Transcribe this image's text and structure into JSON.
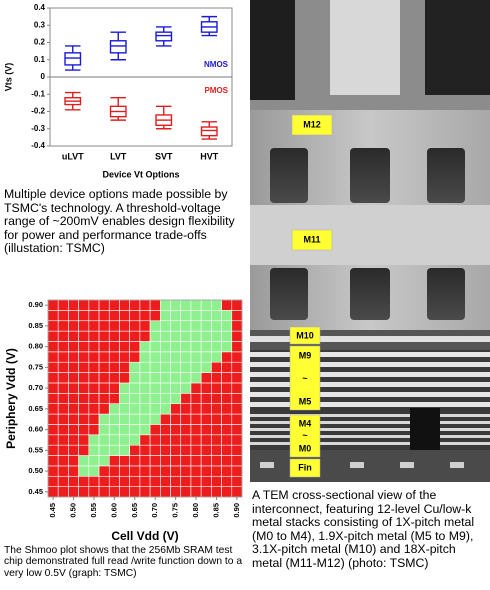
{
  "chart_data": [
    {
      "type": "box",
      "y_label": "Vts (V)",
      "x_label": "Device Vt Options",
      "categories": [
        "uLVT",
        "LVT",
        "SVT",
        "HVT"
      ],
      "ylim": [
        -0.4,
        0.4
      ],
      "yticks": [
        -0.4,
        -0.3,
        -0.2,
        -0.1,
        0,
        0.1,
        0.2,
        0.3,
        0.4
      ],
      "series": [
        {
          "name": "NMOS",
          "color": "#1a1ad8",
          "values": [
            {
              "min": 0.04,
              "q1": 0.07,
              "median": 0.11,
              "q3": 0.14,
              "max": 0.18
            },
            {
              "min": 0.1,
              "q1": 0.14,
              "median": 0.18,
              "q3": 0.21,
              "max": 0.26
            },
            {
              "min": 0.18,
              "q1": 0.21,
              "median": 0.24,
              "q3": 0.26,
              "max": 0.29
            },
            {
              "min": 0.24,
              "q1": 0.26,
              "median": 0.29,
              "q3": 0.32,
              "max": 0.35
            }
          ]
        },
        {
          "name": "PMOS",
          "color": "#e01e1e",
          "values": [
            {
              "min": -0.19,
              "q1": -0.16,
              "median": -0.14,
              "q3": -0.12,
              "max": -0.09
            },
            {
              "min": -0.25,
              "q1": -0.23,
              "median": -0.2,
              "q3": -0.17,
              "max": -0.12
            },
            {
              "min": -0.3,
              "q1": -0.28,
              "median": -0.25,
              "q3": -0.22,
              "max": -0.17
            },
            {
              "min": -0.36,
              "q1": -0.34,
              "median": -0.31,
              "q3": -0.29,
              "max": -0.26
            }
          ]
        }
      ]
    },
    {
      "type": "heatmap",
      "x_label": "Cell Vdd (V)",
      "y_label": "Periphery Vdd (V)",
      "x": [
        0.45,
        0.475,
        0.5,
        0.525,
        0.55,
        0.575,
        0.6,
        0.625,
        0.65,
        0.675,
        0.7,
        0.725,
        0.75,
        0.775,
        0.8,
        0.825,
        0.85,
        0.875,
        0.9
      ],
      "y": [
        0.45,
        0.475,
        0.5,
        0.525,
        0.55,
        0.575,
        0.6,
        0.625,
        0.65,
        0.675,
        0.7,
        0.725,
        0.75,
        0.775,
        0.8,
        0.825,
        0.85,
        0.875,
        0.9
      ],
      "xlim": [
        0.4375,
        0.9125
      ],
      "ylim": [
        0.4375,
        0.9125
      ],
      "xticks": [
        0.45,
        {
          "value": 0.5,
          "label": "0.50"
        },
        0.55,
        {
          "value": 0.6,
          "label": "0.60"
        },
        0.65,
        {
          "value": 0.7,
          "label": "0.70"
        },
        0.75,
        {
          "value": 0.8,
          "label": "0.80"
        },
        0.85,
        {
          "value": 0.9,
          "label": "0.90"
        }
      ],
      "yticks": [
        0.45,
        {
          "value": 0.5,
          "label": "0.50"
        },
        0.55,
        {
          "value": 0.6,
          "label": "0.60"
        },
        0.65,
        {
          "value": 0.7,
          "label": "0.70"
        },
        0.75,
        {
          "value": 0.8,
          "label": "0.80"
        },
        0.85,
        {
          "value": 0.9,
          "label": "0.90"
        }
      ],
      "colors": [
        "#ee1d1d",
        "#8ef08e"
      ],
      "values": [
        [
          0,
          0,
          0,
          0,
          0,
          0,
          0,
          0,
          0,
          0,
          0,
          0,
          0,
          0,
          0,
          0,
          0,
          0,
          0
        ],
        [
          0,
          0,
          0,
          0,
          0,
          0,
          0,
          0,
          0,
          0,
          0,
          0,
          0,
          0,
          0,
          0,
          0,
          0,
          0
        ],
        [
          0,
          0,
          0,
          1,
          1,
          0,
          0,
          0,
          0,
          0,
          0,
          0,
          0,
          0,
          0,
          0,
          0,
          0,
          0
        ],
        [
          0,
          0,
          0,
          1,
          1,
          1,
          0,
          0,
          0,
          0,
          0,
          0,
          0,
          0,
          0,
          0,
          0,
          0,
          0
        ],
        [
          0,
          0,
          0,
          0,
          1,
          1,
          1,
          1,
          0,
          0,
          0,
          0,
          0,
          0,
          0,
          0,
          0,
          0,
          0
        ],
        [
          0,
          0,
          0,
          0,
          1,
          1,
          1,
          1,
          1,
          0,
          0,
          0,
          0,
          0,
          0,
          0,
          0,
          0,
          0
        ],
        [
          0,
          0,
          0,
          0,
          0,
          1,
          1,
          1,
          1,
          1,
          0,
          0,
          0,
          0,
          0,
          0,
          0,
          0,
          0
        ],
        [
          0,
          0,
          0,
          0,
          0,
          1,
          1,
          1,
          1,
          1,
          1,
          0,
          0,
          0,
          0,
          0,
          0,
          0,
          0
        ],
        [
          0,
          0,
          0,
          0,
          0,
          0,
          1,
          1,
          1,
          1,
          1,
          1,
          0,
          0,
          0,
          0,
          0,
          0,
          0
        ],
        [
          0,
          0,
          0,
          0,
          0,
          0,
          0,
          1,
          1,
          1,
          1,
          1,
          1,
          0,
          0,
          0,
          0,
          0,
          0
        ],
        [
          0,
          0,
          0,
          0,
          0,
          0,
          0,
          1,
          1,
          1,
          1,
          1,
          1,
          1,
          0,
          0,
          0,
          0,
          0
        ],
        [
          0,
          0,
          0,
          0,
          0,
          0,
          0,
          0,
          1,
          1,
          1,
          1,
          1,
          1,
          1,
          0,
          0,
          0,
          0
        ],
        [
          0,
          0,
          0,
          0,
          0,
          0,
          0,
          0,
          1,
          1,
          1,
          1,
          1,
          1,
          1,
          1,
          0,
          0,
          0
        ],
        [
          0,
          0,
          0,
          0,
          0,
          0,
          0,
          0,
          0,
          1,
          1,
          1,
          1,
          1,
          1,
          1,
          1,
          0,
          0
        ],
        [
          0,
          0,
          0,
          0,
          0,
          0,
          0,
          0,
          0,
          1,
          1,
          1,
          1,
          1,
          1,
          1,
          1,
          1,
          0
        ],
        [
          0,
          0,
          0,
          0,
          0,
          0,
          0,
          0,
          0,
          0,
          1,
          1,
          1,
          1,
          1,
          1,
          1,
          1,
          0
        ],
        [
          0,
          0,
          0,
          0,
          0,
          0,
          0,
          0,
          0,
          0,
          1,
          1,
          1,
          1,
          1,
          1,
          1,
          1,
          0
        ],
        [
          0,
          0,
          0,
          0,
          0,
          0,
          0,
          0,
          0,
          0,
          0,
          1,
          1,
          1,
          1,
          1,
          1,
          1,
          0
        ],
        [
          0,
          0,
          0,
          0,
          0,
          0,
          0,
          0,
          0,
          0,
          0,
          1,
          1,
          1,
          1,
          1,
          1,
          0,
          0
        ]
      ]
    }
  ],
  "captions": [
    "Multiple device options made possible by TSMC's  technology. A threshold-voltage range of ~200mV enables design flexibility for power and performance trade-offs (illustation: TSMC)",
    "The Shmoo plot shows that the 256Mb SRAM test chip demonstrated full read /write function down to a very low 0.5V (graph: TSMC)",
    "A TEM cross-sectional view of the interconnect, featuring 12-level Cu/low-k metal stacks consisting of 1X-pitch metal (M0 to M4), 1.9X-pitch metal (M5 to M9), 3.1X-pitch metal (M10) and 18X-pitch metal (M11-M12) (photo: TSMC)"
  ],
  "tem_labels": [
    "M12",
    "M11",
    "M10",
    "M9",
    "~",
    "M5",
    "M4",
    "~",
    "M0",
    "Fin"
  ]
}
